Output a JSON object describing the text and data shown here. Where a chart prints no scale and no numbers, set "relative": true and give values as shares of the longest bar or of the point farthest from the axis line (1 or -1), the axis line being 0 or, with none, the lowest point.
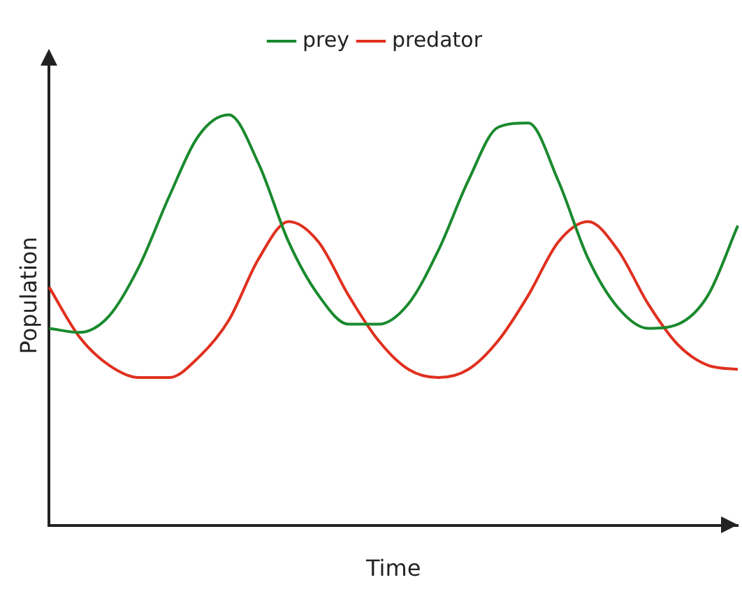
{
  "chart_data": {
    "type": "line",
    "relative": true,
    "xlabel": "Time",
    "ylabel": "Population",
    "legend": "top",
    "marker": "none",
    "line_style": "solid",
    "grid": false,
    "categories": [
      null,
      null,
      null,
      null,
      null,
      null,
      null,
      null,
      null,
      null,
      null,
      null,
      null,
      null,
      null,
      null,
      null,
      null,
      null,
      null,
      null,
      null,
      null,
      null
    ],
    "series": [
      {
        "name": "prey",
        "color": "#1a8a2e",
        "values": [
          0.48,
          0.47,
          0.51,
          0.63,
          0.8,
          0.95,
          1.0,
          0.88,
          0.69,
          0.56,
          0.49,
          0.49,
          0.54,
          0.67,
          0.84,
          0.97,
          0.98,
          0.84,
          0.65,
          0.53,
          0.48,
          0.49,
          0.56,
          0.73
        ]
      },
      {
        "name": "predator",
        "color": "#e0301e",
        "values": [
          0.58,
          0.46,
          0.39,
          0.36,
          0.36,
          0.41,
          0.5,
          0.65,
          0.74,
          0.69,
          0.56,
          0.45,
          0.38,
          0.36,
          0.38,
          0.45,
          0.56,
          0.69,
          0.74,
          0.67,
          0.54,
          0.44,
          0.39,
          0.38
        ]
      }
    ]
  }
}
